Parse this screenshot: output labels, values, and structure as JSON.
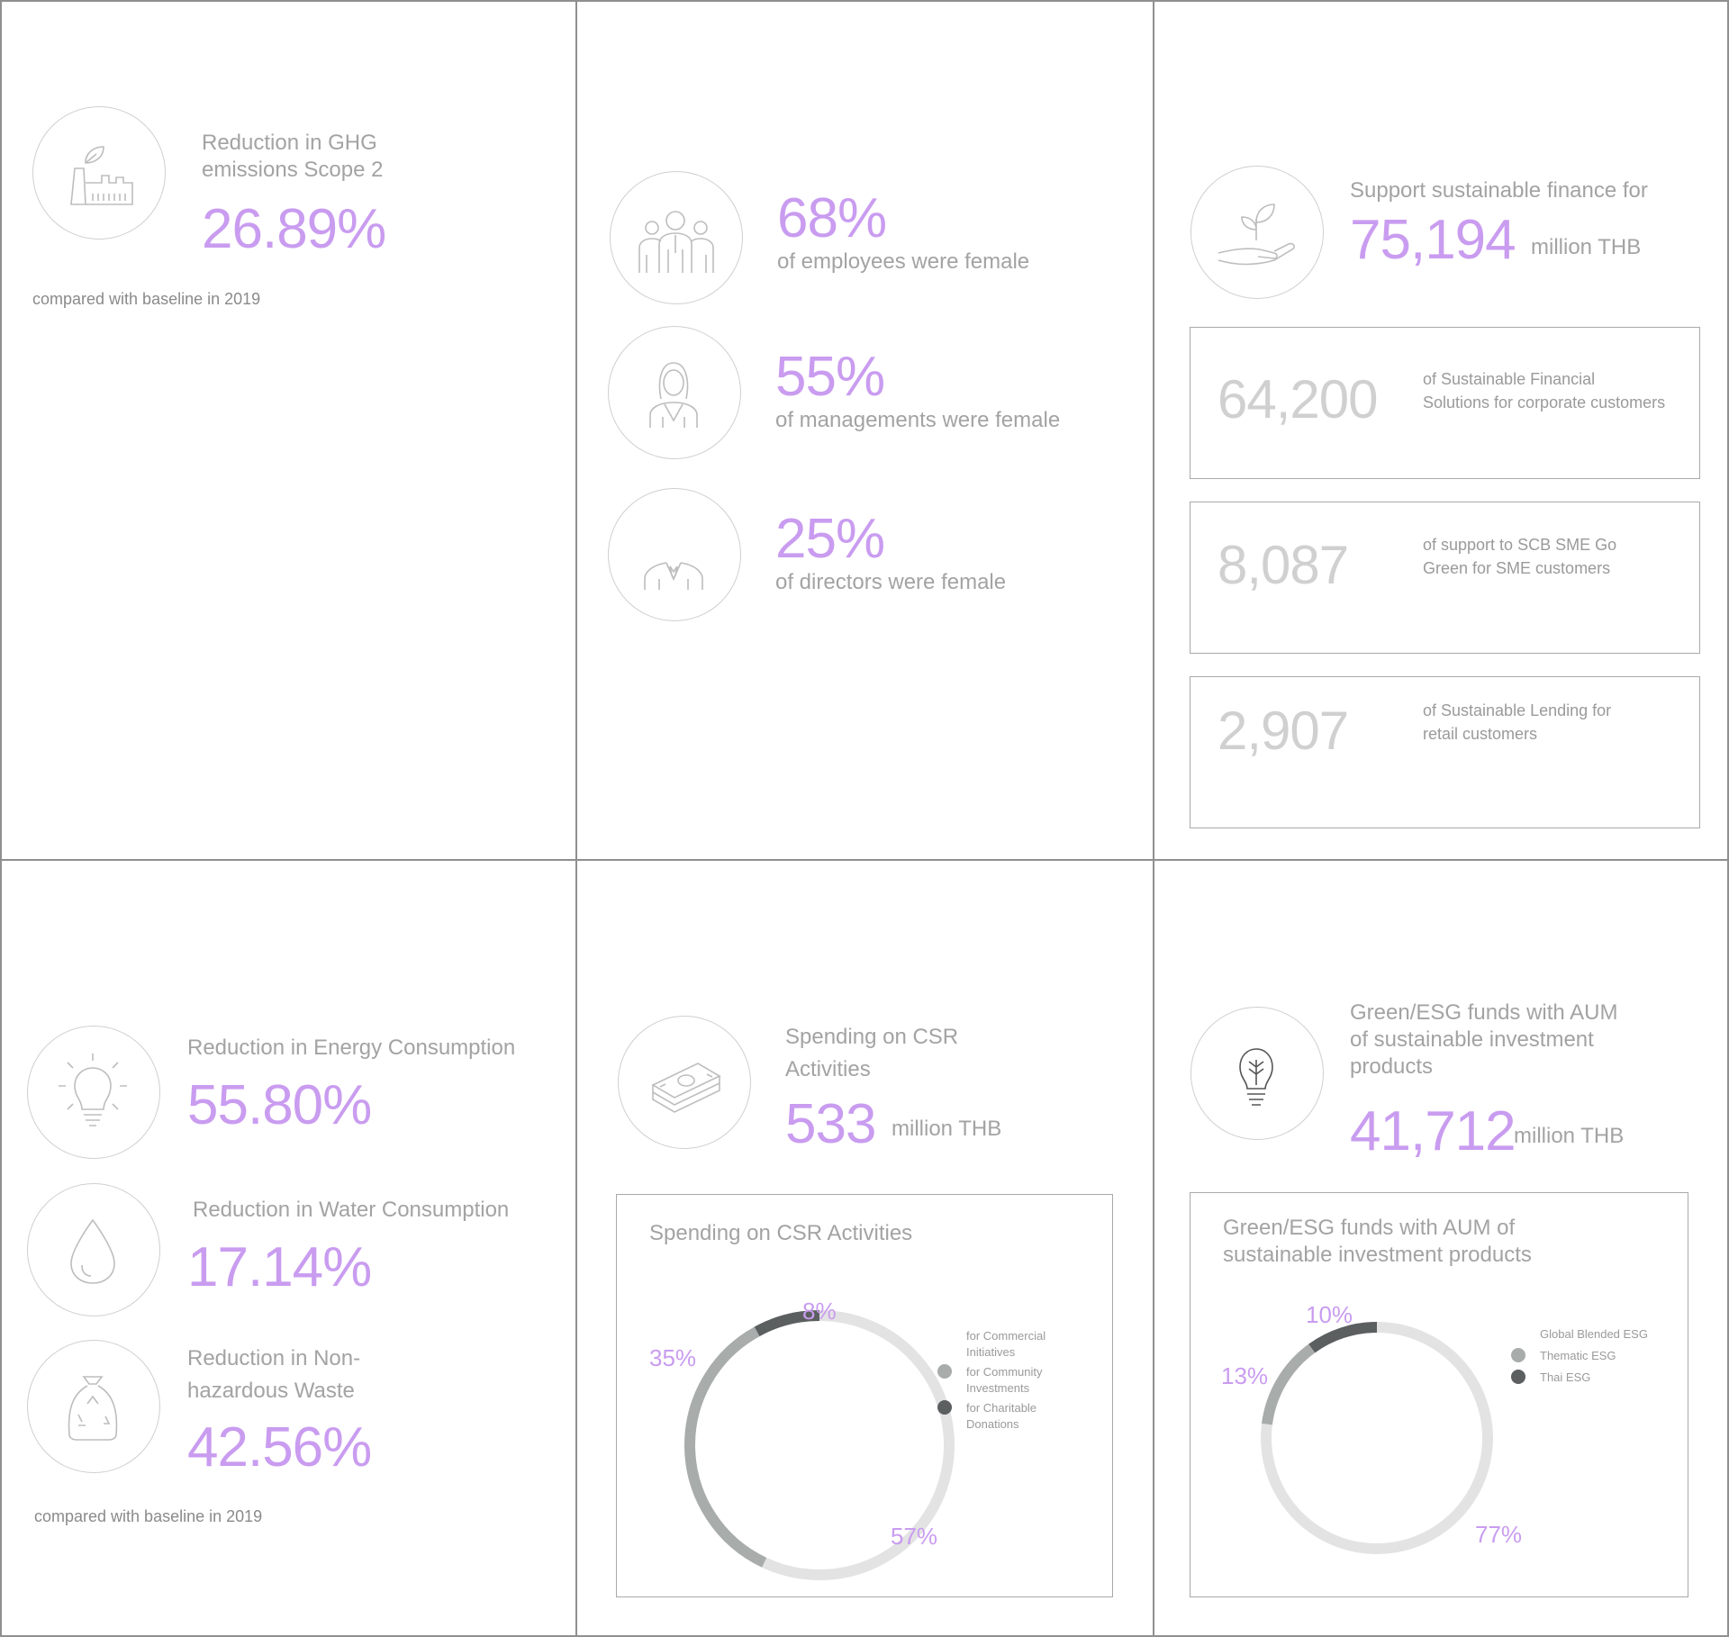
{
  "ghg": {
    "label": "Reduction in GHG emissions Scope 2",
    "value": "26.89%",
    "note": "compared with baseline in 2019",
    "icon": "factory-leaf-icon"
  },
  "diversity": {
    "items": [
      {
        "value": "68%",
        "label": "of employees were female",
        "icon": "employees-group-icon"
      },
      {
        "value": "55%",
        "label": "of managements were female",
        "icon": "female-manager-icon"
      },
      {
        "value": "25%",
        "label": "of directors were female",
        "icon": "director-suit-icon"
      }
    ]
  },
  "finance": {
    "label": "Support sustainable finance for",
    "value": "75,194",
    "unit": "million THB",
    "icon": "hand-plant-icon",
    "boxes": [
      {
        "value": "64,200",
        "label": "of Sustainable Financial Solutions for corporate customers"
      },
      {
        "value": "8,087",
        "label": "of support to SCB SME Go Green for SME customers"
      },
      {
        "value": "2,907",
        "label": "of Sustainable Lending for retail customers"
      }
    ]
  },
  "reductions": {
    "items": [
      {
        "label": "Reduction in Energy Consumption",
        "value": "55.80%",
        "icon": "lightbulb-icon"
      },
      {
        "label": "Reduction in Water Consumption",
        "value": "17.14%",
        "icon": "water-drop-icon"
      },
      {
        "label": "Reduction in Non-hazardous Waste",
        "value": "42.56%",
        "icon": "recycle-bag-icon"
      }
    ],
    "note": "compared with baseline in 2019"
  },
  "csr": {
    "label": "Spending on CSR Activities",
    "value": "533",
    "unit": "million THB",
    "icon": "money-stack-icon"
  },
  "esg": {
    "label": "Green/ESG funds with AUM of sustainable investment products",
    "value": "41,712",
    "unit": "million THB",
    "icon": "bulb-leaf-icon"
  },
  "colors": {
    "accent": "#c99cf0",
    "light_gray": "#e3e3e3",
    "mid_gray": "#a8acab",
    "dark_gray": "#5b5f60"
  },
  "chart_data": [
    {
      "type": "pie",
      "title": "Spending on CSR Activities",
      "categories": [
        "for Commercial Initiatives",
        "for Community Investments",
        "for Charitable Donations"
      ],
      "values": [
        57,
        35,
        8
      ],
      "value_labels": [
        "57%",
        "35%",
        "8%"
      ],
      "legend": "right"
    },
    {
      "type": "pie",
      "title": "Green/ESG funds with AUM of sustainable investment products",
      "categories": [
        "Global Blended ESG",
        "Thematic ESG",
        "Thai ESG"
      ],
      "values": [
        77,
        13,
        10
      ],
      "value_labels": [
        "77%",
        "13%",
        "10%"
      ],
      "legend": "right"
    }
  ]
}
